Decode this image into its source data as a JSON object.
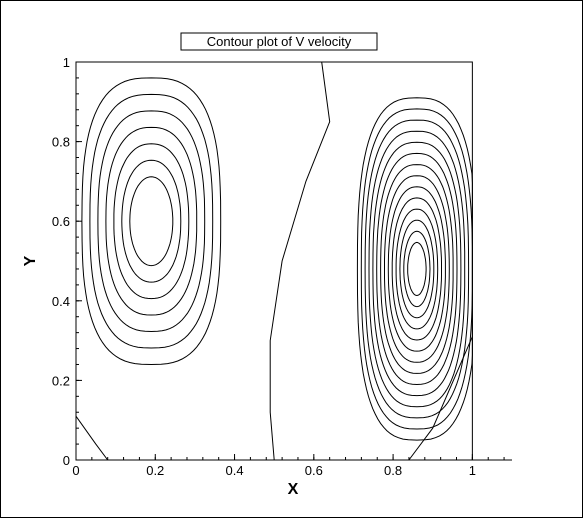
{
  "chart_data": {
    "type": "contour",
    "title": "Contour plot of V velocity",
    "xlabel": "X",
    "ylabel": "Y",
    "xlim": [
      0,
      1.1
    ],
    "ylim": [
      0,
      1
    ],
    "xticks": [
      0,
      0.2,
      0.4,
      0.6,
      0.8,
      1
    ],
    "yticks": [
      0,
      0.2,
      0.4,
      0.6,
      0.8,
      1
    ],
    "xtick_labels": [
      "0",
      "0.2",
      "0.4",
      "0.6",
      "0.8",
      "1"
    ],
    "ytick_labels": [
      "0",
      "0.2",
      "0.4",
      "0.6",
      "0.8",
      "1"
    ],
    "x_minor_step": 0.04,
    "y_minor_step": 0.04,
    "domain": {
      "xmin": 0,
      "xmax": 1,
      "ymin": 0,
      "ymax": 1
    },
    "line_color": "#000000",
    "vortices": [
      {
        "name": "left",
        "center": [
          0.19,
          0.6
        ],
        "outer_radius": [
          0.175,
          0.36
        ],
        "levels": 7,
        "shrink": 0.115
      },
      {
        "name": "right",
        "center": [
          0.86,
          0.48
        ],
        "outer_radius": [
          0.15,
          0.43
        ],
        "levels": 14,
        "shrink": 0.065
      }
    ],
    "extra_contours": [
      {
        "name": "zero-line",
        "points": [
          [
            0.62,
            1.0
          ],
          [
            0.64,
            0.85
          ],
          [
            0.58,
            0.7
          ],
          [
            0.52,
            0.5
          ],
          [
            0.49,
            0.3
          ],
          [
            0.49,
            0.12
          ],
          [
            0.5,
            0.0
          ]
        ]
      },
      {
        "name": "bottom-left-corner",
        "points": [
          [
            0.0,
            0.11
          ],
          [
            0.05,
            0.04
          ],
          [
            0.08,
            0.0
          ]
        ]
      },
      {
        "name": "bottom-right-corner",
        "points": [
          [
            0.84,
            0.0
          ],
          [
            0.9,
            0.08
          ],
          [
            1.0,
            0.31
          ]
        ]
      }
    ]
  }
}
